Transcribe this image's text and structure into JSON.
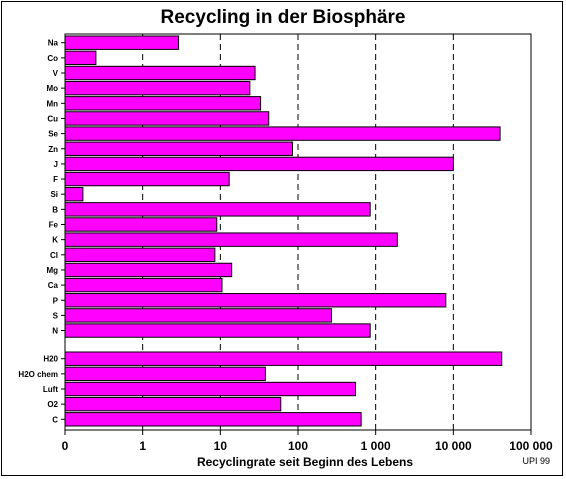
{
  "chart_data": {
    "type": "bar",
    "orientation": "horizontal",
    "title": "Recycling in der Biosphäre",
    "xlabel": "Recyclingrate seit Beginn des Lebens",
    "ylabel": "",
    "x_scale": "log",
    "xlim": [
      0.1,
      100000
    ],
    "x_ticks": [
      {
        "value": 0.1,
        "label": "0"
      },
      {
        "value": 1,
        "label": "1"
      },
      {
        "value": 10,
        "label": "10"
      },
      {
        "value": 100,
        "label": "100"
      },
      {
        "value": 1000,
        "label": "1 000"
      },
      {
        "value": 10000,
        "label": "10 000"
      },
      {
        "value": 100000,
        "label": "100 000"
      }
    ],
    "grid": "vertical dashed at decades",
    "bar_color": "#ff00ff",
    "bar_edge_color": "#000000",
    "groups": [
      {
        "categories": [
          "Na",
          "Co",
          "V",
          "Mo",
          "Mn",
          "Cu",
          "Se",
          "Zn",
          "J",
          "F",
          "Si",
          "B",
          "Fe",
          "K",
          "Cl",
          "Mg",
          "Ca",
          "P",
          "S",
          "N"
        ],
        "values": [
          2.9,
          0.25,
          28,
          24,
          33,
          42,
          40000,
          85,
          10000,
          13,
          0.17,
          850,
          9,
          1900,
          8.5,
          14,
          10.5,
          8000,
          270,
          850
        ]
      },
      {
        "categories": [
          "H20",
          "H2O chem",
          "Luft",
          "O2",
          "C"
        ],
        "values": [
          42000,
          38,
          550,
          60,
          650
        ]
      }
    ]
  },
  "credit": "UPI 99"
}
